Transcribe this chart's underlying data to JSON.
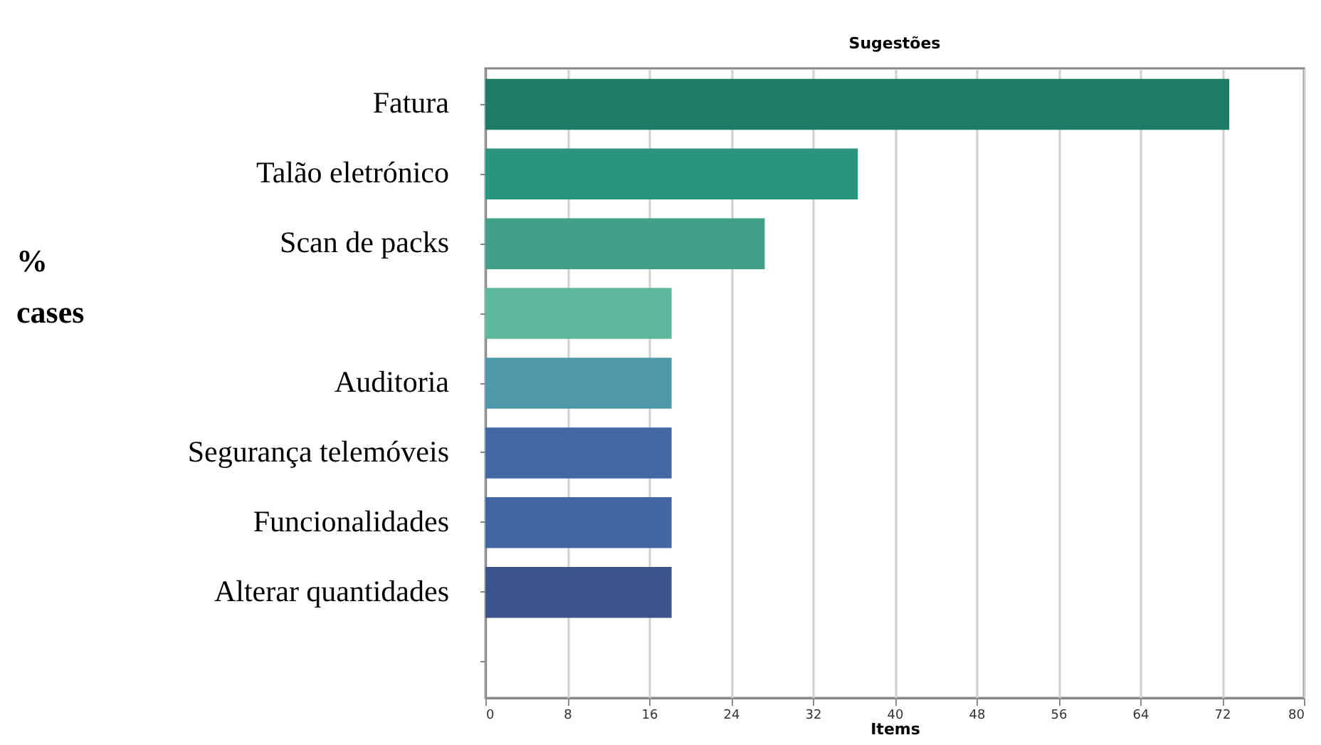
{
  "chart_data": {
    "type": "bar",
    "orientation": "horizontal",
    "title": "Sugestões",
    "xlabel": "Items",
    "ylabel": "% cases",
    "categories": [
      "Fatura",
      "Talão eletrónico",
      "Scan de packs",
      null,
      "Auditoria",
      "Segurança telemóveis",
      "Funcionalidades",
      "Alterar quantidades",
      null
    ],
    "values": [
      72.7,
      36.4,
      27.3,
      18.2,
      18.2,
      18.2,
      18.2,
      18.2,
      null
    ],
    "colors": [
      "#1e7b65",
      "#2a947c",
      "#42a088",
      "#5eb89e",
      "#4e98aa",
      "#4468a6",
      "#4466a4",
      "#3c538c",
      "#3c538c"
    ],
    "xlim": [
      0,
      80
    ],
    "xticks": [
      0,
      8,
      16,
      24,
      32,
      40,
      48,
      56,
      64,
      72,
      80
    ],
    "grid": "x"
  }
}
